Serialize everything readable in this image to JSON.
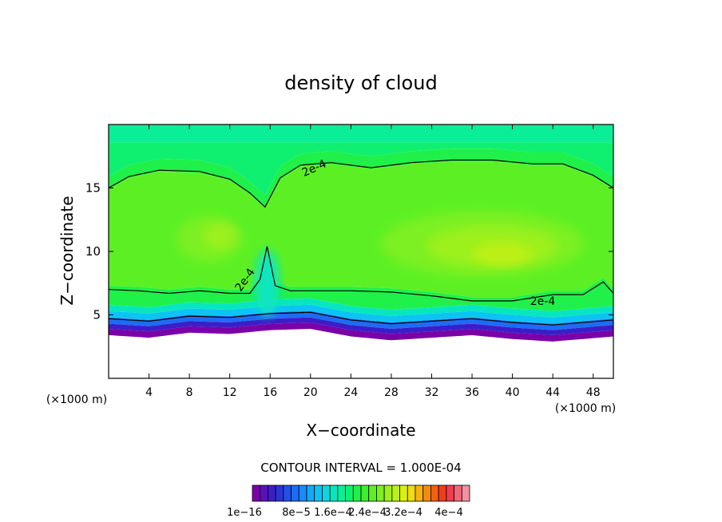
{
  "chart_data": {
    "type": "heatmap",
    "title": "density of cloud",
    "xlabel": "X−coordinate",
    "ylabel": "Z−coordinate",
    "x_unit_left": "(×1000 m)",
    "x_unit_right": "(×1000 m)",
    "xlim": [
      0,
      50
    ],
    "ylim": [
      0,
      20
    ],
    "x_ticks": [
      4,
      8,
      12,
      16,
      20,
      24,
      28,
      32,
      36,
      40,
      44,
      48
    ],
    "y_ticks": [
      5,
      10,
      15
    ],
    "contour_interval_text": "CONTOUR INTERVAL = 1.000E-04",
    "contour_labels": [
      "2e-4",
      "2e-4",
      "2e-4"
    ],
    "colorbar_labels": [
      "1e−16",
      "8e−5",
      "1.6e−4",
      "2.4e−4",
      "3.2e−4",
      "4e−4"
    ],
    "colorbar_colors": [
      "#7a00a8",
      "#5a10b8",
      "#3a1ec8",
      "#2a34d8",
      "#2050e8",
      "#1c6cf4",
      "#1c8af8",
      "#14a8f8",
      "#0cc4f4",
      "#0ad8e0",
      "#08e6c0",
      "#0aee98",
      "#10f070",
      "#20f04a",
      "#3cf030",
      "#5cf024",
      "#7cf020",
      "#9cf01c",
      "#bcf018",
      "#dcee14",
      "#f0dc10",
      "#f4b410",
      "#f48a10",
      "#f46010",
      "#f03c20",
      "#f03c50",
      "#f06878",
      "#f490a0"
    ],
    "colorbar_min": 0,
    "colorbar_max": 0.00042,
    "field_description_points": {
      "cloud_base_z": [
        3.4,
        3.2,
        3.6,
        3.5,
        3.8,
        3.9,
        3.3,
        3.0,
        3.2,
        3.4,
        3.1,
        2.9,
        3.3
      ],
      "cloud_base_x": [
        0,
        4,
        8,
        12,
        16,
        20,
        24,
        28,
        32,
        36,
        40,
        44,
        50
      ],
      "contour_upper_x": [
        0,
        2,
        5,
        9,
        12,
        14,
        15.5,
        17,
        19,
        22,
        26,
        30,
        34,
        38,
        42,
        45,
        48,
        50
      ],
      "contour_upper_z": [
        15.0,
        15.9,
        16.4,
        16.3,
        15.7,
        14.6,
        13.5,
        15.8,
        16.8,
        17.0,
        16.6,
        17.0,
        17.2,
        17.2,
        16.9,
        16.9,
        16.0,
        15.0
      ],
      "contour_lower_x": [
        0,
        3,
        6,
        9,
        12,
        14,
        15,
        15.7,
        16.5,
        18,
        21,
        24,
        28,
        32,
        36,
        40,
        44,
        47,
        49,
        50
      ],
      "contour_lower_z": [
        7.0,
        6.9,
        6.7,
        6.9,
        6.7,
        6.7,
        7.8,
        10.4,
        7.3,
        6.9,
        6.9,
        6.9,
        6.8,
        6.5,
        6.1,
        6.1,
        6.6,
        6.6,
        7.6,
        6.7
      ]
    }
  }
}
